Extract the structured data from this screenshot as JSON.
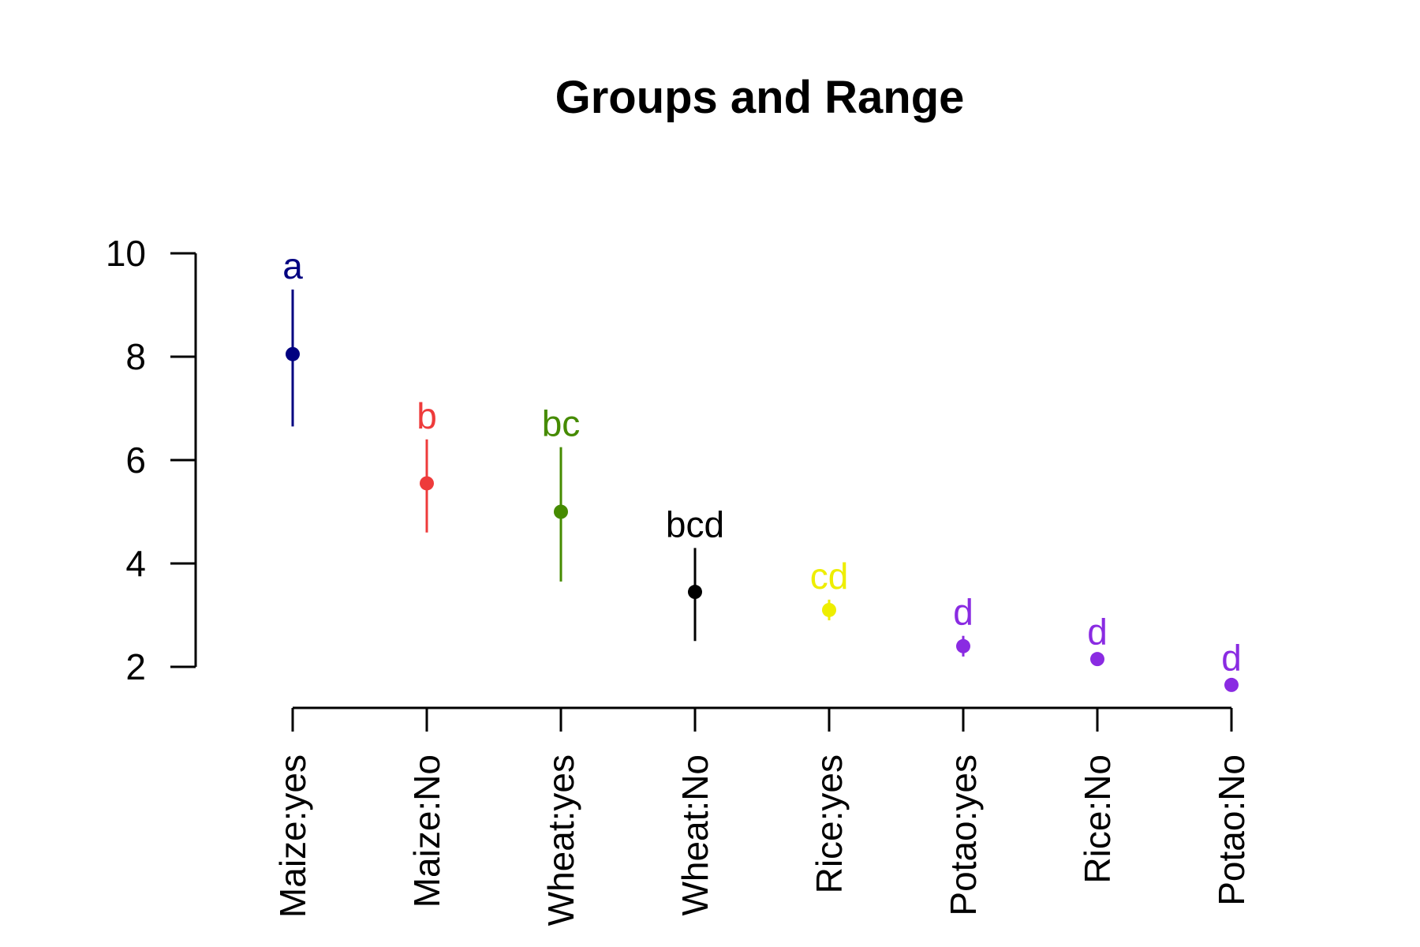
{
  "chart_data": {
    "type": "scatter",
    "title": "Groups and Range",
    "xlabel": "",
    "ylabel": "",
    "ylim": [
      2,
      10
    ],
    "yticks": [
      2,
      4,
      6,
      8,
      10
    ],
    "categories": [
      "Maize:yes",
      "Maize:No",
      "Wheat:yes",
      "Wheat:No",
      "Rice:yes",
      "Potao:yes",
      "Rice:No",
      "Potao:No"
    ],
    "points": [
      {
        "category": "Maize:yes",
        "value": 8.05,
        "low": 6.65,
        "high": 9.3,
        "group": "a",
        "color": "#000080"
      },
      {
        "category": "Maize:No",
        "value": 5.55,
        "low": 4.6,
        "high": 6.4,
        "group": "b",
        "color": "#EE3B3B"
      },
      {
        "category": "Wheat:yes",
        "value": 5.0,
        "low": 3.65,
        "high": 6.25,
        "group": "bc",
        "color": "#458B00"
      },
      {
        "category": "Wheat:No",
        "value": 3.45,
        "low": 2.5,
        "high": 4.3,
        "group": "bcd",
        "color": "#000000"
      },
      {
        "category": "Rice:yes",
        "value": 3.1,
        "low": 2.9,
        "high": 3.3,
        "group": "cd",
        "color": "#EEEE00"
      },
      {
        "category": "Potao:yes",
        "value": 2.4,
        "low": 2.2,
        "high": 2.6,
        "group": "d",
        "color": "#8A2BE2"
      },
      {
        "category": "Rice:No",
        "value": 2.15,
        "low": 2.08,
        "high": 2.22,
        "group": "d",
        "color": "#8A2BE2"
      },
      {
        "category": "Potao:No",
        "value": 1.65,
        "low": 1.58,
        "high": 1.72,
        "group": "d",
        "color": "#8A2BE2"
      }
    ]
  }
}
